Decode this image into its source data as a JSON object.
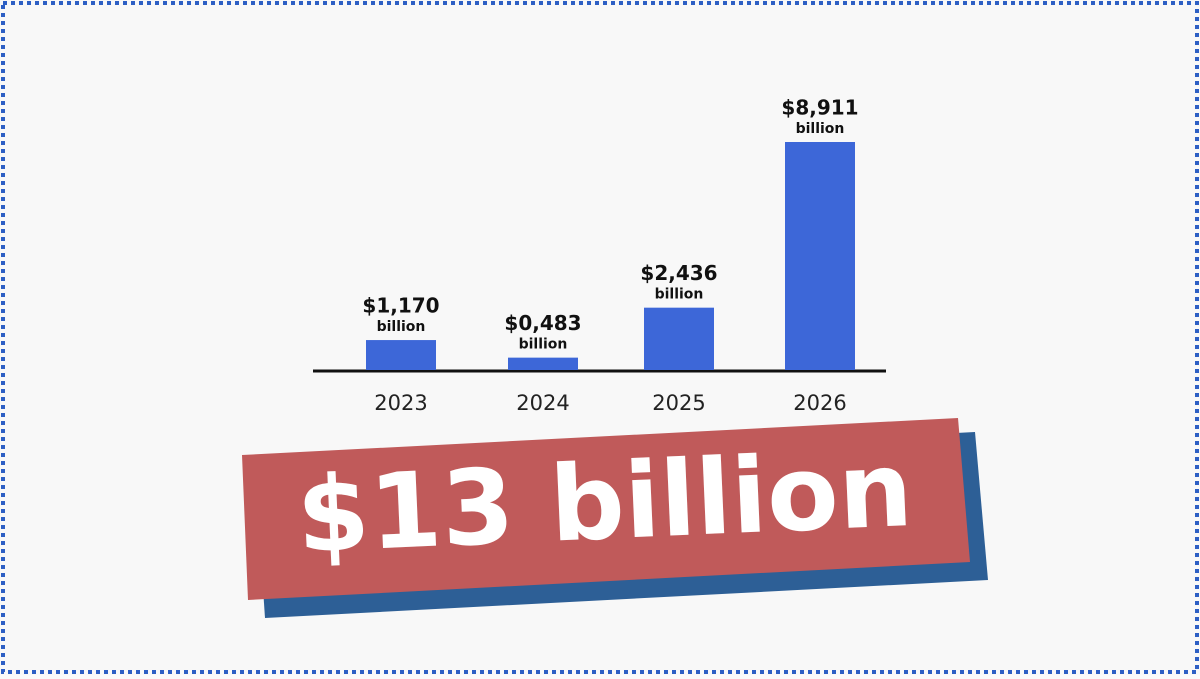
{
  "chart_data": {
    "type": "bar",
    "categories": [
      "2023",
      "2024",
      "2025",
      "2026"
    ],
    "values": [
      1.17,
      0.483,
      2.436,
      8.911
    ],
    "value_labels": [
      "$1,170",
      "$0,483",
      "$2,436",
      "$8,911"
    ],
    "value_unit": "billion",
    "color": "#3d67d8",
    "annotation": "$13 billion"
  }
}
